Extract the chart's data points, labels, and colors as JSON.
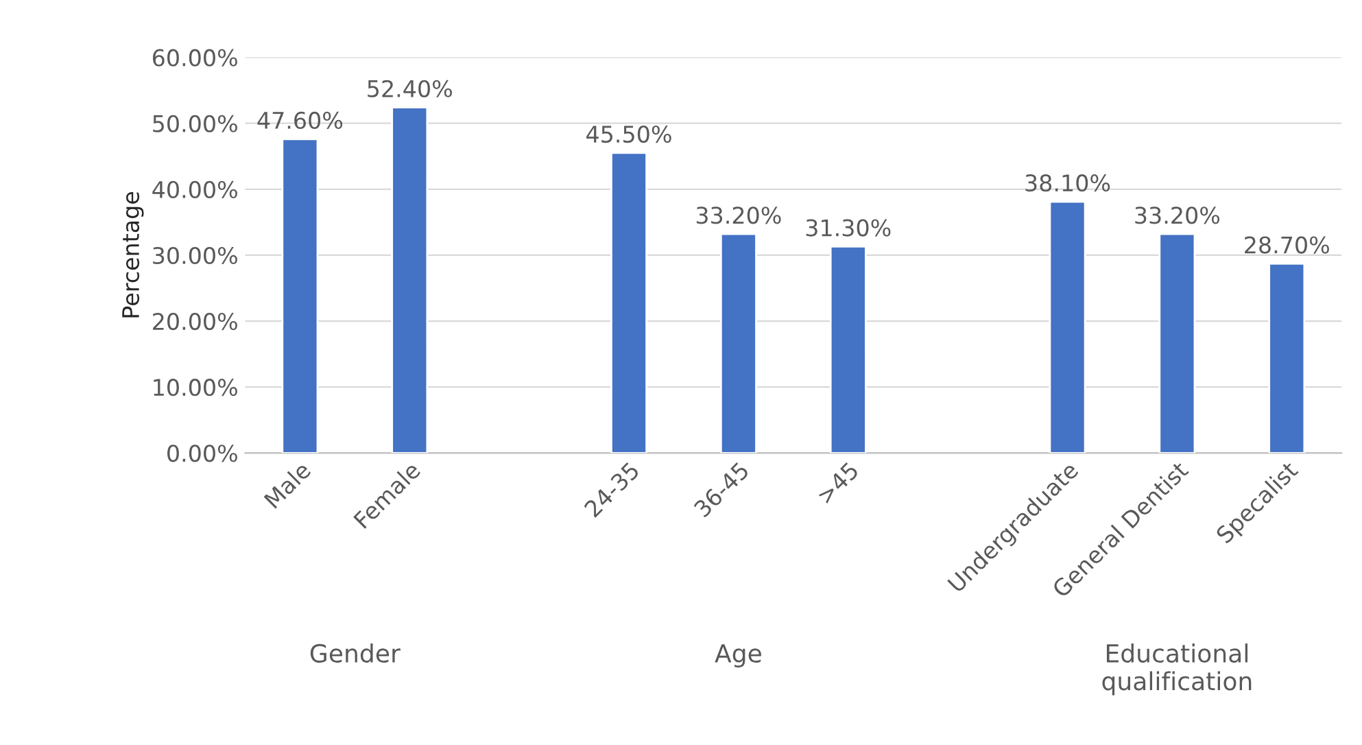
{
  "chart_data": {
    "type": "bar",
    "ylabel": "Percentage",
    "categories": [
      "Male",
      "Female",
      null,
      "24-35",
      "36-45",
      ">45",
      null,
      "Undergraduate",
      "General Dentist",
      "Specalist"
    ],
    "values": [
      47.6,
      52.4,
      null,
      45.5,
      33.2,
      31.3,
      null,
      38.1,
      33.2,
      28.7
    ],
    "value_labels": [
      "47.60%",
      "52.40%",
      null,
      "45.50%",
      "33.20%",
      "31.30%",
      null,
      "38.10%",
      "33.20%",
      "28.70%"
    ],
    "color": "#4472c4",
    "ylim": [
      0,
      60
    ],
    "yticks": [
      {
        "value": 0,
        "label": "0.00%"
      },
      {
        "value": 10,
        "label": "10.00%"
      },
      {
        "value": 20,
        "label": "20.00%"
      },
      {
        "value": 30,
        "label": "30.00%"
      },
      {
        "value": 40,
        "label": "40.00%"
      },
      {
        "value": 50,
        "label": "50.00%"
      },
      {
        "value": 60,
        "label": "60.00%"
      }
    ],
    "grid": "y",
    "annotations": [
      "Gender",
      "Age",
      "Educational\nqualification"
    ]
  }
}
